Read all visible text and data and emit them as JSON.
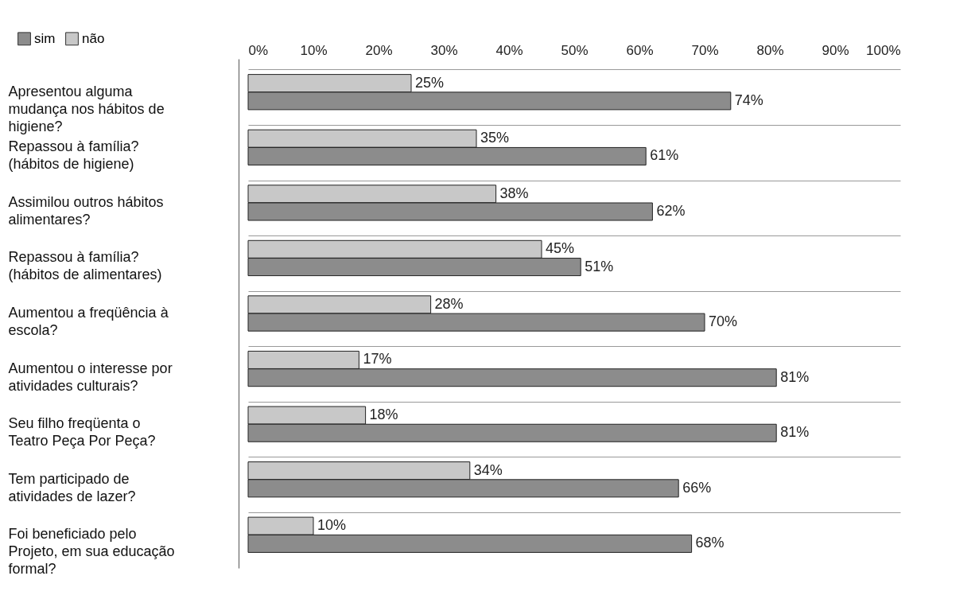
{
  "chart_data": {
    "type": "bar",
    "orientation": "horizontal",
    "categories": [
      "Apresentou alguma mudança nos hábitos de higiene?",
      "Repassou à família? (hábitos de higiene)",
      "Assimilou outros hábitos alimentares?",
      "Repassou à família? (hábitos de alimentares)",
      "Aumentou a freqüência à escola?",
      "Aumentou o interesse por atividades culturais?",
      "Seu filho freqüenta o Teatro Peça Por Peça?",
      "Tem participado de atividades de lazer?",
      "Foi beneficiado pelo Projeto, em sua educação formal?"
    ],
    "series": [
      {
        "name": "não",
        "color": "#c8c8c8",
        "values": [
          25,
          35,
          38,
          45,
          28,
          17,
          18,
          34,
          10
        ],
        "value_labels": [
          "25%",
          "35%",
          "38%",
          "45%",
          "28%",
          "17%",
          "18%",
          "34%",
          "10%"
        ]
      },
      {
        "name": "sim",
        "color": "#8c8c8c",
        "values": [
          74,
          61,
          62,
          51,
          70,
          81,
          81,
          66,
          68
        ],
        "value_labels": [
          "74%",
          "61%",
          "62%",
          "51%",
          "70%",
          "81%",
          "81%",
          "66%",
          "68%"
        ]
      }
    ],
    "xlim": [
      0,
      100
    ],
    "xticks": [
      {
        "value": 0,
        "label": "0%"
      },
      {
        "value": 10,
        "label": "10%"
      },
      {
        "value": 20,
        "label": "20%"
      },
      {
        "value": 30,
        "label": "30%"
      },
      {
        "value": 40,
        "label": "40%"
      },
      {
        "value": 50,
        "label": "50%"
      },
      {
        "value": 60,
        "label": "60%"
      },
      {
        "value": 70,
        "label": "70%"
      },
      {
        "value": 80,
        "label": "80%"
      },
      {
        "value": 90,
        "label": "90%"
      },
      {
        "value": 100,
        "label": "100%"
      }
    ],
    "grid": "y",
    "legend": "top left"
  }
}
